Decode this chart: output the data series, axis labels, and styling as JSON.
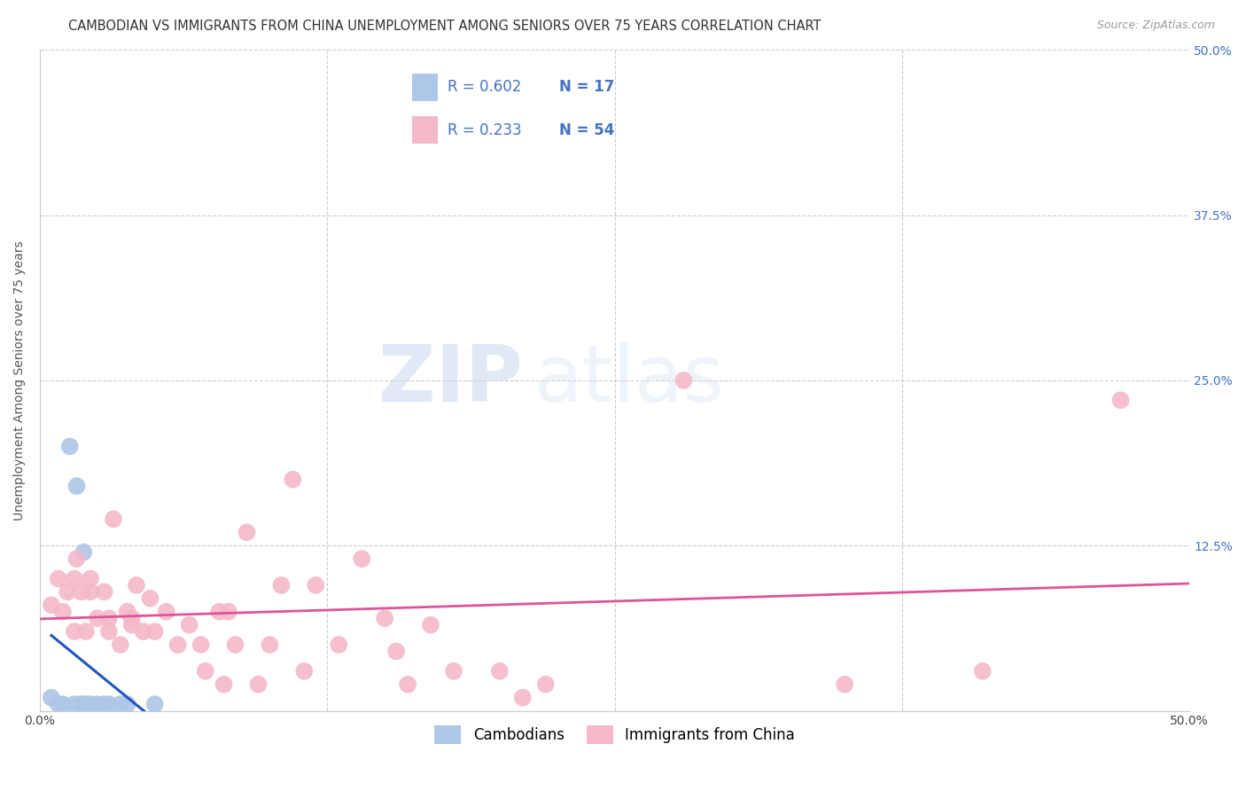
{
  "title": "CAMBODIAN VS IMMIGRANTS FROM CHINA UNEMPLOYMENT AMONG SENIORS OVER 75 YEARS CORRELATION CHART",
  "source": "Source: ZipAtlas.com",
  "ylabel": "Unemployment Among Seniors over 75 years",
  "xlim": [
    0.0,
    0.5
  ],
  "ylim": [
    0.0,
    0.5
  ],
  "cambodian_color": "#aec6e8",
  "china_color": "#f4b8c8",
  "trendline_cambodian_color": "#2255bb",
  "trendline_china_color": "#dd5599",
  "legend_R_cambodian": "R = 0.602",
  "legend_N_cambodian": "N = 17",
  "legend_R_china": "R = 0.233",
  "legend_N_china": "N = 54",
  "watermark_zip": "ZIP",
  "watermark_atlas": "atlas",
  "title_fontsize": 10.5,
  "axis_label_fontsize": 10,
  "tick_fontsize": 10,
  "cambodian_x": [
    0.005,
    0.008,
    0.01,
    0.013,
    0.015,
    0.016,
    0.018,
    0.018,
    0.019,
    0.02,
    0.022,
    0.025,
    0.028,
    0.03,
    0.035,
    0.038,
    0.05
  ],
  "cambodian_y": [
    0.01,
    0.005,
    0.005,
    0.2,
    0.005,
    0.17,
    0.005,
    0.005,
    0.12,
    0.005,
    0.005,
    0.005,
    0.005,
    0.005,
    0.005,
    0.005,
    0.005
  ],
  "china_x": [
    0.005,
    0.008,
    0.01,
    0.012,
    0.015,
    0.015,
    0.016,
    0.018,
    0.02,
    0.022,
    0.022,
    0.025,
    0.028,
    0.03,
    0.03,
    0.032,
    0.035,
    0.038,
    0.04,
    0.04,
    0.042,
    0.045,
    0.048,
    0.05,
    0.055,
    0.06,
    0.065,
    0.07,
    0.072,
    0.078,
    0.08,
    0.082,
    0.085,
    0.09,
    0.095,
    0.1,
    0.105,
    0.11,
    0.115,
    0.12,
    0.13,
    0.14,
    0.15,
    0.155,
    0.16,
    0.17,
    0.18,
    0.2,
    0.21,
    0.22,
    0.28,
    0.35,
    0.41,
    0.47
  ],
  "china_y": [
    0.08,
    0.1,
    0.075,
    0.09,
    0.06,
    0.1,
    0.115,
    0.09,
    0.06,
    0.09,
    0.1,
    0.07,
    0.09,
    0.06,
    0.07,
    0.145,
    0.05,
    0.075,
    0.065,
    0.07,
    0.095,
    0.06,
    0.085,
    0.06,
    0.075,
    0.05,
    0.065,
    0.05,
    0.03,
    0.075,
    0.02,
    0.075,
    0.05,
    0.135,
    0.02,
    0.05,
    0.095,
    0.175,
    0.03,
    0.095,
    0.05,
    0.115,
    0.07,
    0.045,
    0.02,
    0.065,
    0.03,
    0.03,
    0.01,
    0.02,
    0.25,
    0.02,
    0.03,
    0.235
  ]
}
